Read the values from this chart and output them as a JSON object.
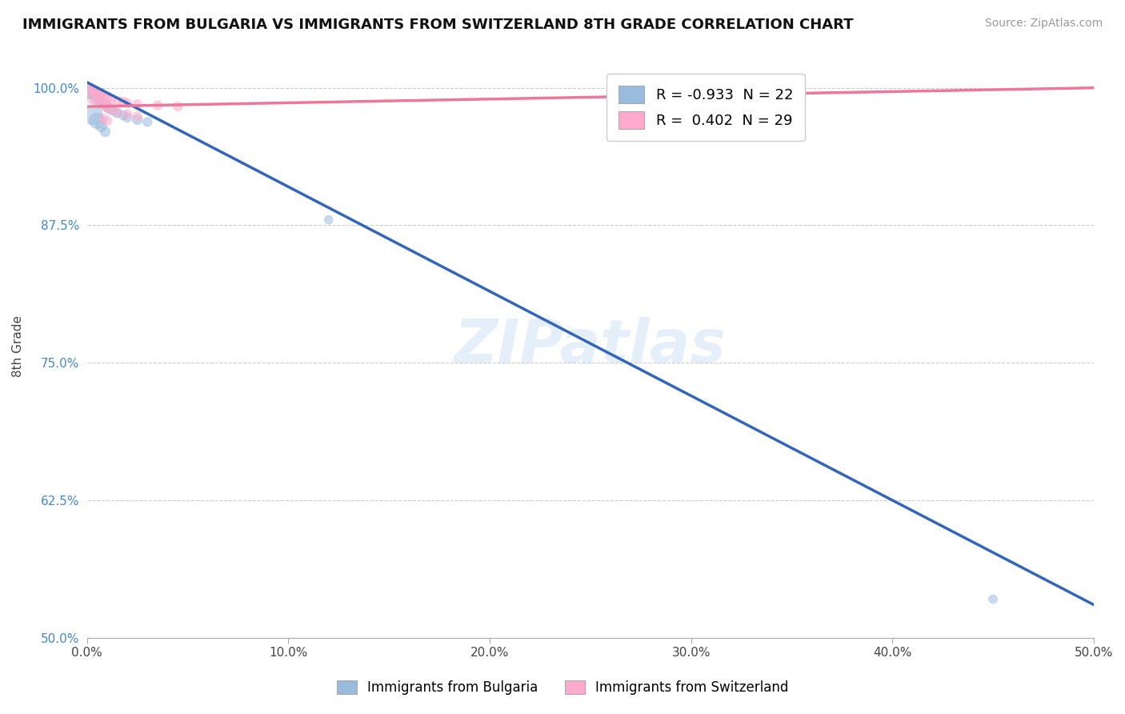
{
  "title": "IMMIGRANTS FROM BULGARIA VS IMMIGRANTS FROM SWITZERLAND 8TH GRADE CORRELATION CHART",
  "source": "Source: ZipAtlas.com",
  "ylabel": "8th Grade",
  "xlim": [
    0.0,
    0.5
  ],
  "ylim": [
    0.5,
    1.03
  ],
  "xticks": [
    0.0,
    0.1,
    0.2,
    0.3,
    0.4,
    0.5
  ],
  "yticks": [
    0.5,
    0.625,
    0.75,
    0.875,
    1.0
  ],
  "ytick_labels": [
    "50.0%",
    "62.5%",
    "75.0%",
    "87.5%",
    "100.0%"
  ],
  "xtick_labels": [
    "0.0%",
    "10.0%",
    "20.0%",
    "30.0%",
    "40.0%",
    "50.0%"
  ],
  "blue_R": -0.933,
  "blue_N": 22,
  "pink_R": 0.402,
  "pink_N": 29,
  "blue_color": "#99BBDD",
  "pink_color": "#FFAACC",
  "blue_line_color": "#3366BB",
  "pink_line_color": "#EE7799",
  "watermark": "ZIPatlas",
  "blue_label": "Immigrants from Bulgaria",
  "pink_label": "Immigrants from Switzerland",
  "blue_scatter_x": [
    0.001,
    0.002,
    0.003,
    0.004,
    0.005,
    0.006,
    0.007,
    0.009,
    0.01,
    0.011,
    0.013,
    0.015,
    0.018,
    0.02,
    0.025,
    0.03,
    0.003,
    0.005,
    0.007,
    0.009,
    0.12,
    0.45
  ],
  "blue_scatter_y": [
    0.997,
    0.996,
    0.995,
    0.993,
    0.991,
    0.989,
    0.987,
    0.985,
    0.983,
    0.981,
    0.979,
    0.977,
    0.975,
    0.973,
    0.971,
    0.969,
    0.975,
    0.97,
    0.965,
    0.96,
    0.88,
    0.535
  ],
  "blue_scatter_size": [
    200,
    150,
    80,
    120,
    90,
    80,
    70,
    80,
    90,
    80,
    70,
    70,
    70,
    70,
    80,
    70,
    300,
    200,
    100,
    80,
    60,
    60
  ],
  "pink_scatter_x": [
    0.001,
    0.002,
    0.003,
    0.004,
    0.005,
    0.006,
    0.007,
    0.008,
    0.009,
    0.01,
    0.012,
    0.015,
    0.018,
    0.02,
    0.025,
    0.035,
    0.045,
    0.002,
    0.004,
    0.006,
    0.008,
    0.01,
    0.012,
    0.015,
    0.02,
    0.025,
    0.008,
    0.01,
    0.3
  ],
  "pink_scatter_y": [
    0.999,
    0.998,
    0.997,
    0.996,
    0.995,
    0.994,
    0.993,
    0.992,
    0.991,
    0.99,
    0.989,
    0.988,
    0.987,
    0.986,
    0.985,
    0.984,
    0.983,
    0.99,
    0.988,
    0.986,
    0.984,
    0.982,
    0.98,
    0.978,
    0.976,
    0.974,
    0.972,
    0.97,
    1.0
  ],
  "pink_scatter_size": [
    80,
    70,
    70,
    70,
    80,
    70,
    70,
    70,
    80,
    70,
    70,
    70,
    80,
    70,
    70,
    70,
    70,
    70,
    70,
    70,
    70,
    70,
    70,
    70,
    70,
    70,
    70,
    70,
    70
  ],
  "blue_line_x": [
    0.0,
    0.5
  ],
  "blue_line_y": [
    1.005,
    0.53
  ],
  "pink_line_x": [
    0.0,
    0.5
  ],
  "pink_line_y": [
    0.983,
    1.0
  ]
}
